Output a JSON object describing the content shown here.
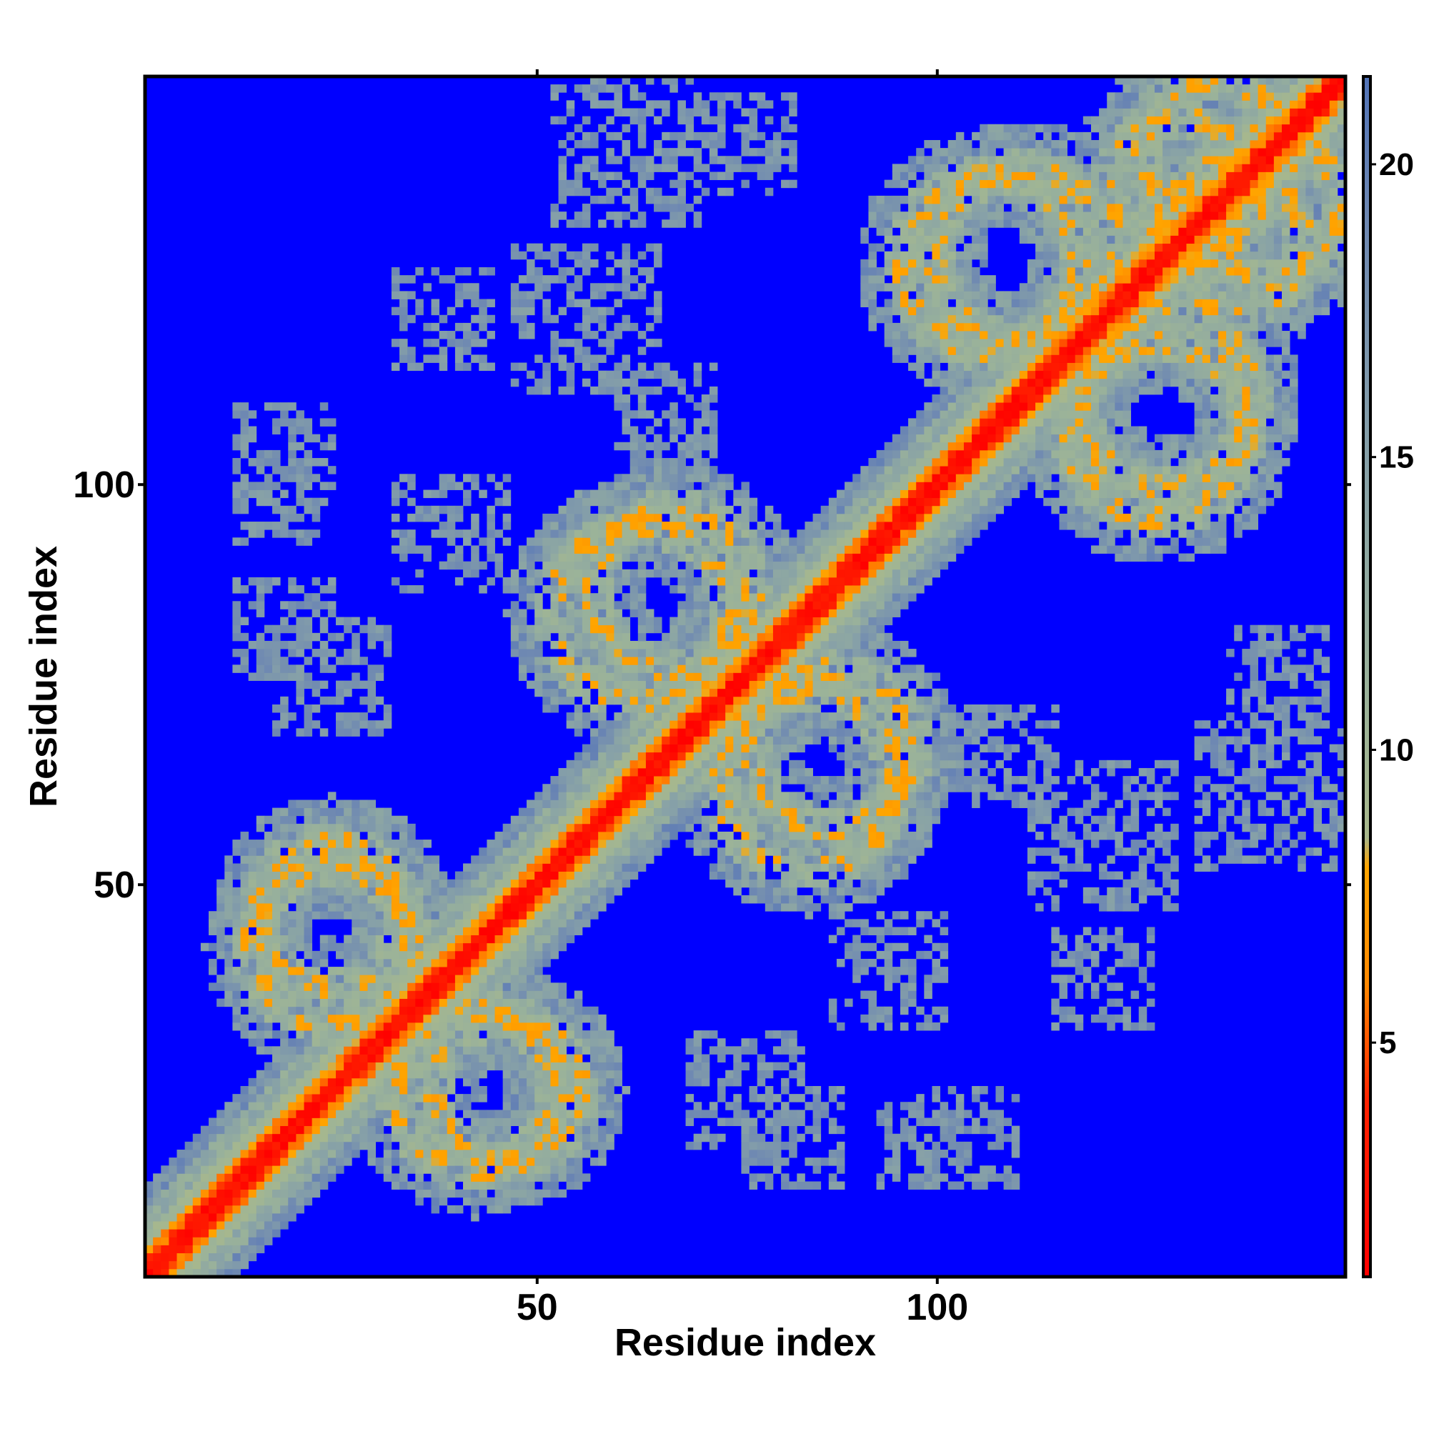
{
  "chart_data": {
    "type": "heatmap",
    "title": "",
    "xlabel": "Residue index",
    "ylabel": "Residue index",
    "xlim": [
      1,
      151
    ],
    "ylim": [
      1,
      151
    ],
    "x_ticks": [
      50,
      100
    ],
    "y_ticks": [
      50,
      100
    ],
    "colorbar": {
      "ticks": [
        5,
        10,
        15,
        20
      ],
      "range": [
        1,
        21.5
      ],
      "orientation": "vertical",
      "placement": "right"
    },
    "colors": {
      "background_value": "#0000ff",
      "stops": [
        {
          "v": 1.0,
          "color": "#ff0000"
        },
        {
          "v": 4.0,
          "color": "#ff2200"
        },
        {
          "v": 6.0,
          "color": "#ff8800"
        },
        {
          "v": 8.0,
          "color": "#ffa500"
        },
        {
          "v": 8.5,
          "color": "#a8b88c"
        },
        {
          "v": 11.0,
          "color": "#9ab29a"
        },
        {
          "v": 15.0,
          "color": "#86a0a8"
        },
        {
          "v": 19.0,
          "color": "#6e88b2"
        },
        {
          "v": 21.5,
          "color": "#5274b8"
        }
      ]
    },
    "features": {
      "matrix_size": 151,
      "diagonal": "red band of near-contacts along main diagonal, orange then grey-green halo",
      "contact_rings": [
        {
          "center": [
            23,
            41
          ],
          "radius": 10
        },
        {
          "center": [
            45,
            23
          ],
          "radius": 9
        },
        {
          "center": [
            66,
            86
          ],
          "radius": 10
        },
        {
          "center": [
            83,
            62
          ],
          "radius": 11
        },
        {
          "center": [
            110,
            128
          ],
          "radius": 11
        },
        {
          "center": [
            127,
            106
          ],
          "radius": 11
        },
        {
          "center": [
            141,
            134
          ],
          "radius": 9
        },
        {
          "center": [
            130,
            136
          ],
          "radius": 9
        }
      ],
      "sparse_patches": [
        {
          "center": [
            60,
            141
          ],
          "spread": 9
        },
        {
          "center": [
            55,
            120
          ],
          "spread": 9
        },
        {
          "center": [
            17,
            103
          ],
          "spread": 6
        },
        {
          "center": [
            17,
            81
          ],
          "spread": 6
        },
        {
          "center": [
            93,
            38
          ],
          "spread": 7
        },
        {
          "center": [
            120,
            37
          ],
          "spread": 6
        },
        {
          "center": [
            75,
            23
          ],
          "spread": 7
        },
        {
          "center": [
            97,
            16
          ],
          "spread": 5
        },
        {
          "center": [
            142,
            75
          ],
          "spread": 6
        },
        {
          "center": [
            108,
            65
          ],
          "spread": 6
        }
      ]
    }
  }
}
